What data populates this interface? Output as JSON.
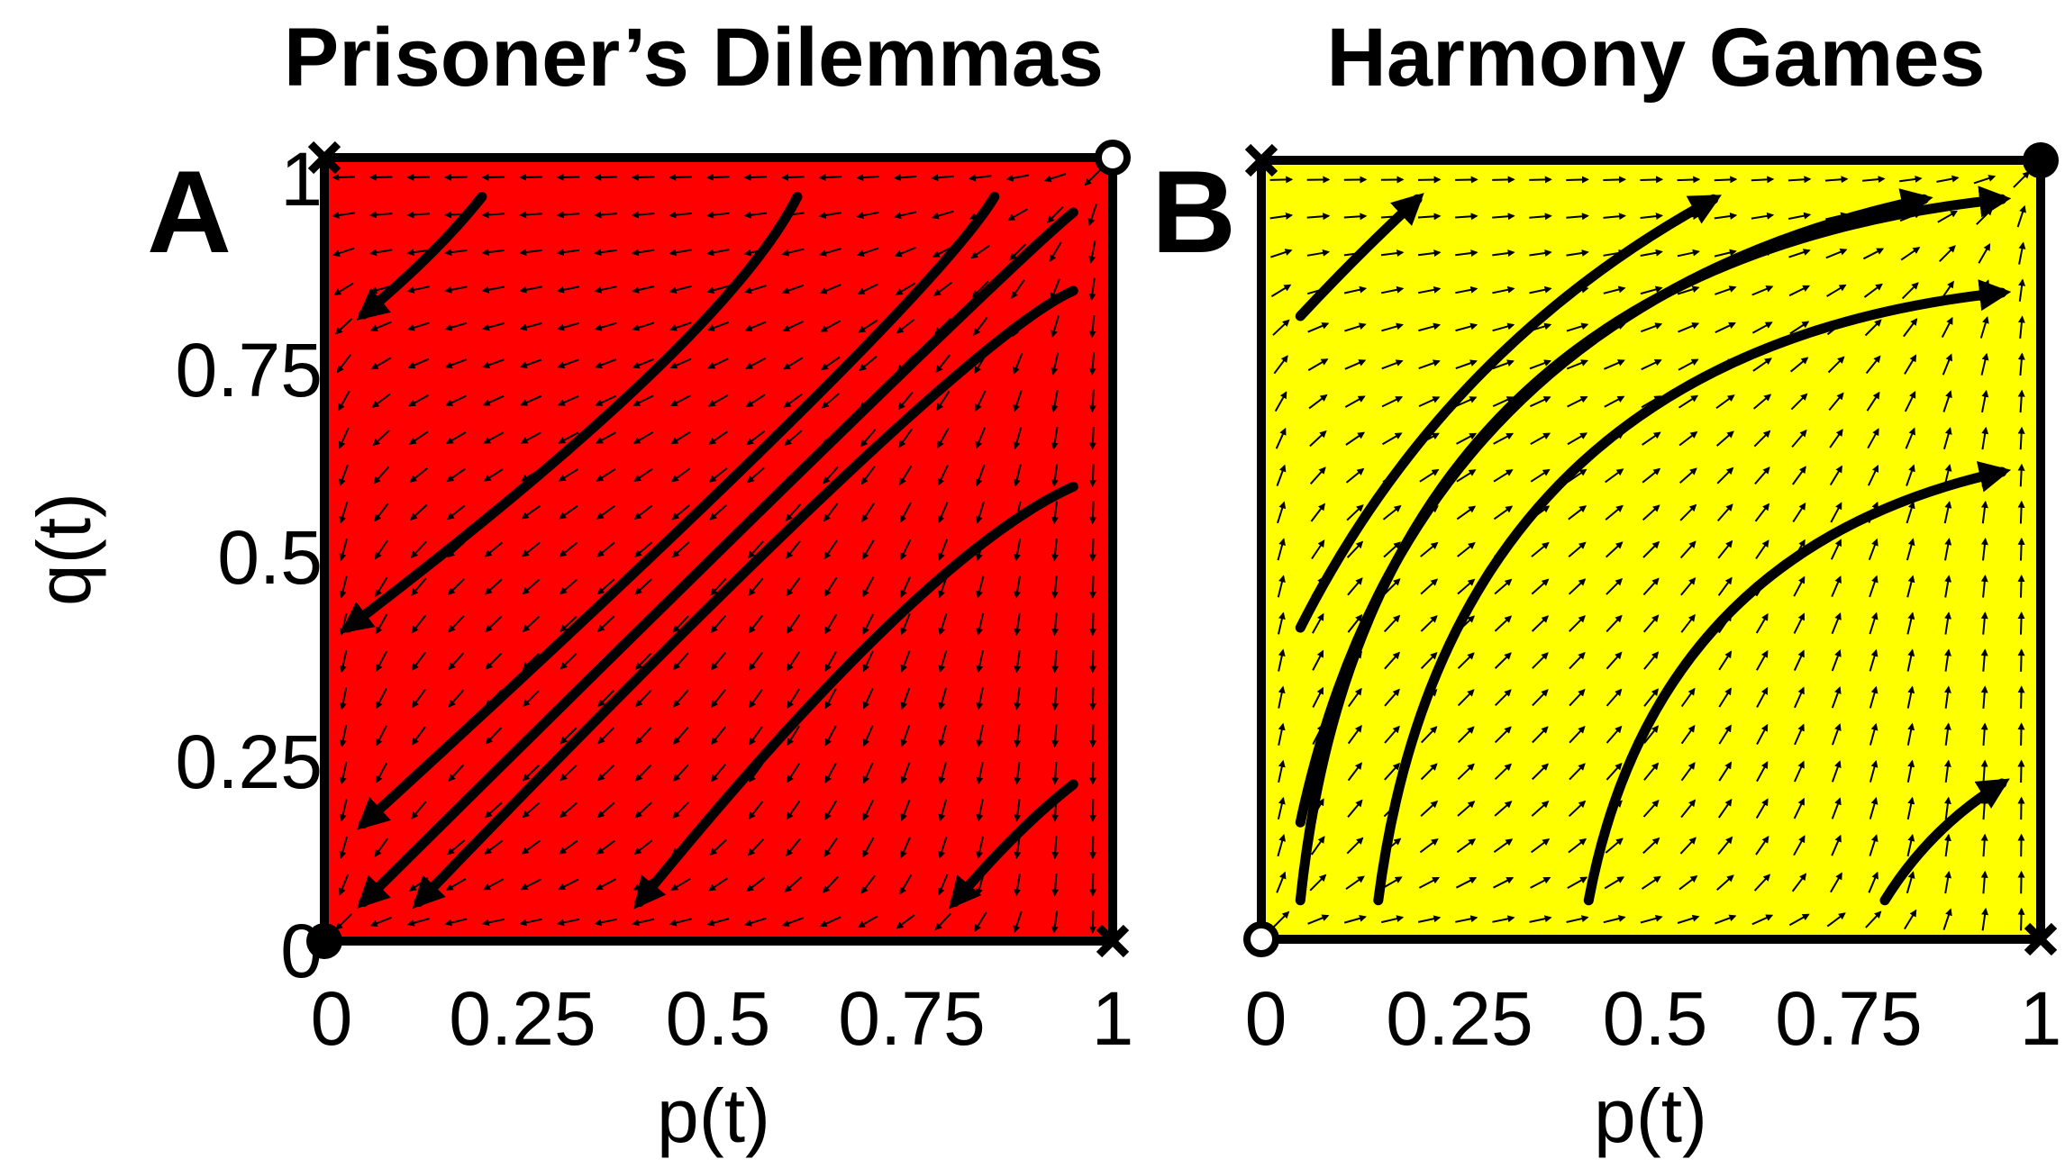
{
  "chart_data": [
    {
      "type": "vector-field",
      "panel_label": "A",
      "title": "Prisoner’s Dilemmas",
      "xlabel": "p(t)",
      "ylabel": "q(t)",
      "xlim": [
        0,
        1
      ],
      "ylim": [
        0,
        1
      ],
      "x_ticks": [
        "0",
        "0.25",
        "0.5",
        "0.75",
        "1"
      ],
      "y_ticks": [
        "0",
        "0.25",
        "0.5",
        "0.75",
        "1"
      ],
      "background_color": "#ff0000",
      "flow": "toward_origin",
      "fixed_points": [
        {
          "x": 0,
          "y": 0,
          "marker": "filled-circle"
        },
        {
          "x": 1,
          "y": 1,
          "marker": "open-circle"
        },
        {
          "x": 0,
          "y": 1,
          "marker": "cross"
        },
        {
          "x": 1,
          "y": 0,
          "marker": "cross"
        }
      ],
      "trajectories": [
        [
          [
            0.2,
            0.95
          ],
          [
            0.05,
            0.8
          ]
        ],
        [
          [
            0.6,
            0.95
          ],
          [
            0.03,
            0.4
          ]
        ],
        [
          [
            0.85,
            0.95
          ],
          [
            0.05,
            0.15
          ]
        ],
        [
          [
            0.95,
            0.93
          ],
          [
            0.05,
            0.05
          ]
        ],
        [
          [
            0.95,
            0.83
          ],
          [
            0.12,
            0.05
          ]
        ],
        [
          [
            0.95,
            0.58
          ],
          [
            0.4,
            0.05
          ]
        ],
        [
          [
            0.95,
            0.2
          ],
          [
            0.8,
            0.05
          ]
        ]
      ]
    },
    {
      "type": "vector-field",
      "panel_label": "B",
      "title": "Harmony Games",
      "xlabel": "p(t)",
      "ylabel": "",
      "xlim": [
        0,
        1
      ],
      "ylim": [
        0,
        1
      ],
      "x_ticks": [
        "0",
        "0.25",
        "0.5",
        "0.75",
        "1"
      ],
      "y_ticks": [],
      "background_color": "#ffff00",
      "flow": "toward_one_one",
      "fixed_points": [
        {
          "x": 0,
          "y": 0,
          "marker": "open-circle"
        },
        {
          "x": 1,
          "y": 1,
          "marker": "filled-circle"
        },
        {
          "x": 0,
          "y": 1,
          "marker": "cross"
        },
        {
          "x": 1,
          "y": 0,
          "marker": "cross"
        }
      ],
      "trajectories": [
        [
          [
            0.05,
            0.8
          ],
          [
            0.2,
            0.95
          ]
        ],
        [
          [
            0.05,
            0.4
          ],
          [
            0.58,
            0.95
          ]
        ],
        [
          [
            0.05,
            0.15
          ],
          [
            0.85,
            0.95
          ]
        ],
        [
          [
            0.05,
            0.05
          ],
          [
            0.95,
            0.95
          ]
        ],
        [
          [
            0.15,
            0.05
          ],
          [
            0.95,
            0.83
          ]
        ],
        [
          [
            0.42,
            0.05
          ],
          [
            0.95,
            0.6
          ]
        ],
        [
          [
            0.8,
            0.05
          ],
          [
            0.95,
            0.2
          ]
        ]
      ]
    }
  ]
}
